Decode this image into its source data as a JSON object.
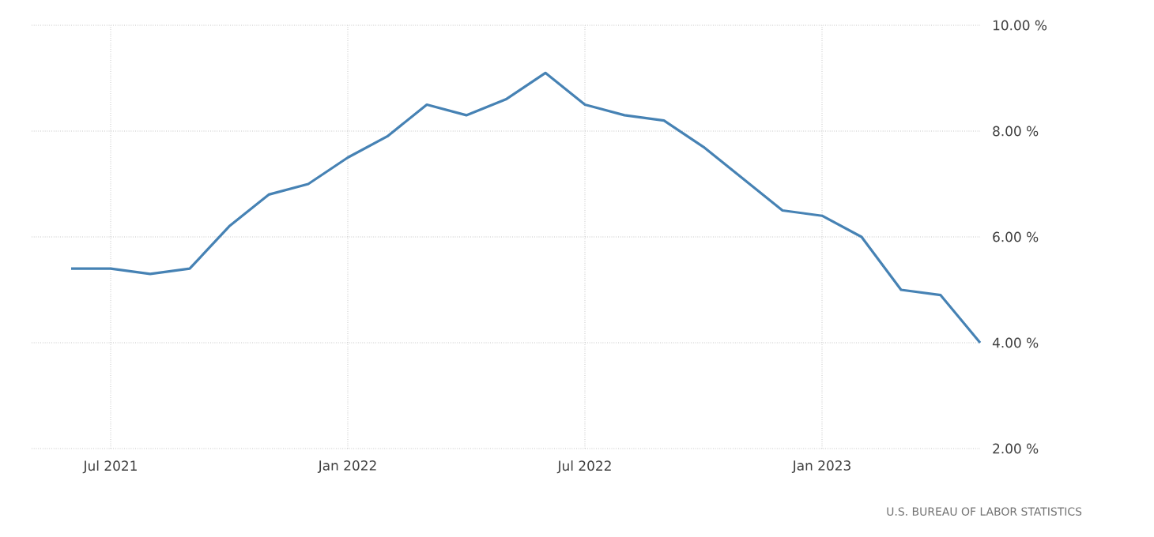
{
  "chart_data": {
    "type": "line",
    "x": [
      "2021-06",
      "2021-07",
      "2021-08",
      "2021-09",
      "2021-10",
      "2021-11",
      "2021-12",
      "2022-01",
      "2022-02",
      "2022-03",
      "2022-04",
      "2022-05",
      "2022-06",
      "2022-07",
      "2022-08",
      "2022-09",
      "2022-10",
      "2022-11",
      "2022-12",
      "2023-01",
      "2023-02",
      "2023-03",
      "2023-04",
      "2023-05"
    ],
    "values": [
      5.4,
      5.4,
      5.3,
      5.4,
      6.2,
      6.8,
      7.0,
      7.5,
      7.9,
      8.5,
      8.3,
      8.6,
      9.1,
      8.5,
      8.3,
      8.2,
      7.7,
      7.1,
      6.5,
      6.4,
      6.0,
      5.0,
      4.9,
      4.0
    ],
    "color": "#4682b4",
    "xlim": [
      "2021-05",
      "2023-05"
    ],
    "xticks": [
      {
        "value": "2021-07",
        "label": "Jul 2021"
      },
      {
        "value": "2022-01",
        "label": "Jan 2022"
      },
      {
        "value": "2022-07",
        "label": "Jul 2022"
      },
      {
        "value": "2023-01",
        "label": "Jan 2023"
      }
    ],
    "ylim": [
      2,
      10
    ],
    "yticks": [
      {
        "value": 2,
        "label": "2.00 %"
      },
      {
        "value": 4,
        "label": "4.00 %"
      },
      {
        "value": 6,
        "label": "6.00 %"
      },
      {
        "value": 8,
        "label": "8.00 %"
      },
      {
        "value": 10,
        "label": "10.00 %"
      }
    ],
    "grid": true,
    "line_style": "solid",
    "marker": "none",
    "annotations": [
      "U.S. BUREAU OF LABOR STATISTICS"
    ]
  }
}
